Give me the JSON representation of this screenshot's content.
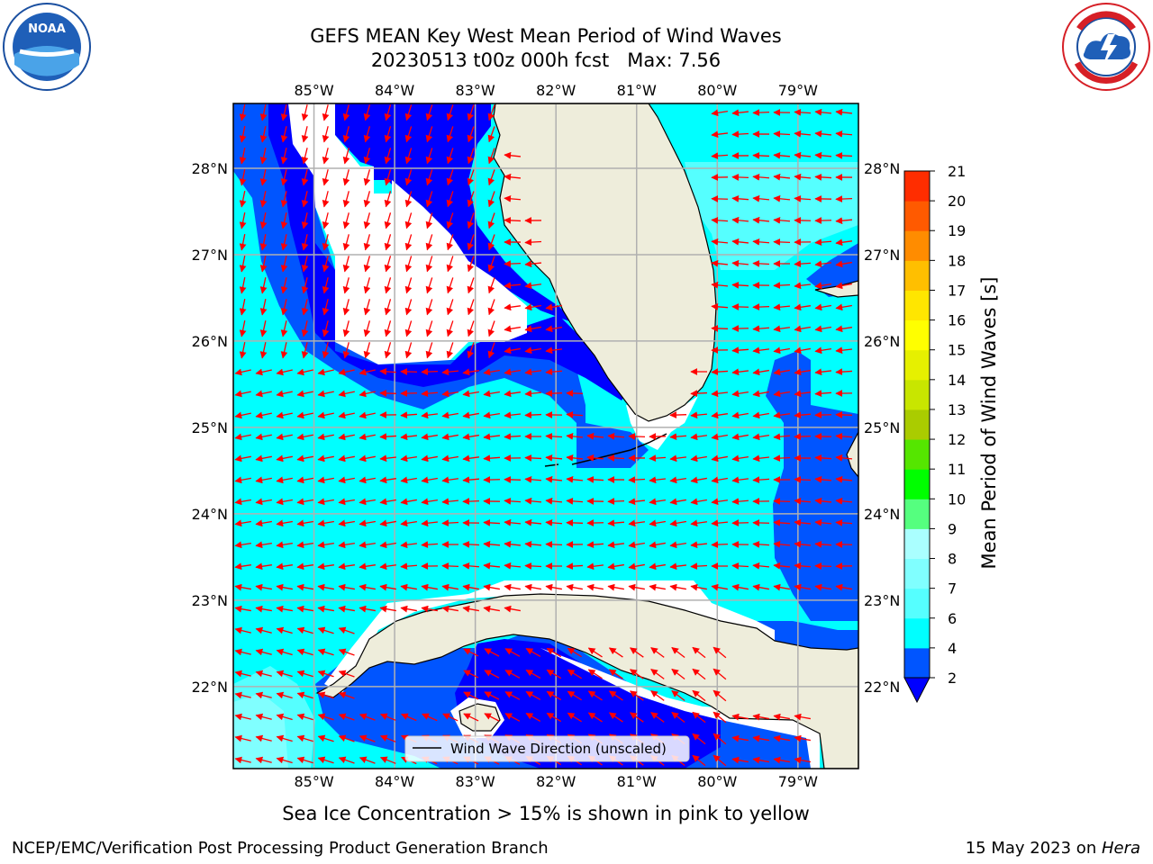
{
  "header": {
    "title_line1": "GEFS MEAN Key West Mean Period of Wind Waves",
    "title_line2": "20230513 t00z 000h fcst   Max: 7.56"
  },
  "map": {
    "extent_lon": [
      -86.0,
      -78.25
    ],
    "extent_lat": [
      21.05,
      28.75
    ],
    "lon_ticks": [
      {
        "value": -85,
        "label": "85°W"
      },
      {
        "value": -84,
        "label": "84°W"
      },
      {
        "value": -83,
        "label": "83°W"
      },
      {
        "value": -82,
        "label": "82°W"
      },
      {
        "value": -81,
        "label": "81°W"
      },
      {
        "value": -80,
        "label": "80°W"
      },
      {
        "value": -79,
        "label": "79°W"
      }
    ],
    "lat_ticks": [
      {
        "value": 28,
        "label": "28°N"
      },
      {
        "value": 27,
        "label": "27°N"
      },
      {
        "value": 26,
        "label": "26°N"
      },
      {
        "value": 25,
        "label": "25°N"
      },
      {
        "value": 24,
        "label": "24°N"
      },
      {
        "value": 23,
        "label": "23°N"
      },
      {
        "value": 22,
        "label": "22°N"
      }
    ],
    "colors": {
      "land": "#eeeddb",
      "ocean_masked": "#ffffff",
      "grid": "#b0b0b0",
      "arrow": "#ff0000",
      "coast": "#000000"
    }
  },
  "legend": {
    "label": "Wind Wave Direction (unscaled)"
  },
  "colorbar": {
    "title": "Mean Period of Wind Waves [s]",
    "levels": [
      2,
      4,
      6,
      7,
      8,
      9,
      10,
      11,
      12,
      13,
      14,
      15,
      16,
      17,
      18,
      19,
      20,
      21
    ],
    "tick_labels": [
      "2",
      "4",
      "6",
      "7",
      "8",
      "9",
      "10",
      "11",
      "12",
      "13",
      "14",
      "15",
      "16",
      "17",
      "18",
      "19",
      "20",
      "21"
    ],
    "colors": [
      "#0055ff",
      "#00ffff",
      "#55ffff",
      "#80ffff",
      "#aaffff",
      "#55ff7f",
      "#00ff00",
      "#55e600",
      "#aacc00",
      "#c8e600",
      "#e6f000",
      "#ffff00",
      "#ffe600",
      "#ffbf00",
      "#ff8c00",
      "#ff5a00",
      "#ff2d00",
      "#ff0000"
    ],
    "under_color": "#0000ff"
  },
  "footer": {
    "left": "Sea Ice Concentration > 15% is shown in pink to yellow",
    "credit": "NCEP/EMC/Verification Post Processing Product Generation Branch",
    "date_prefix": "15 May 2023 on ",
    "host": "Hera"
  }
}
